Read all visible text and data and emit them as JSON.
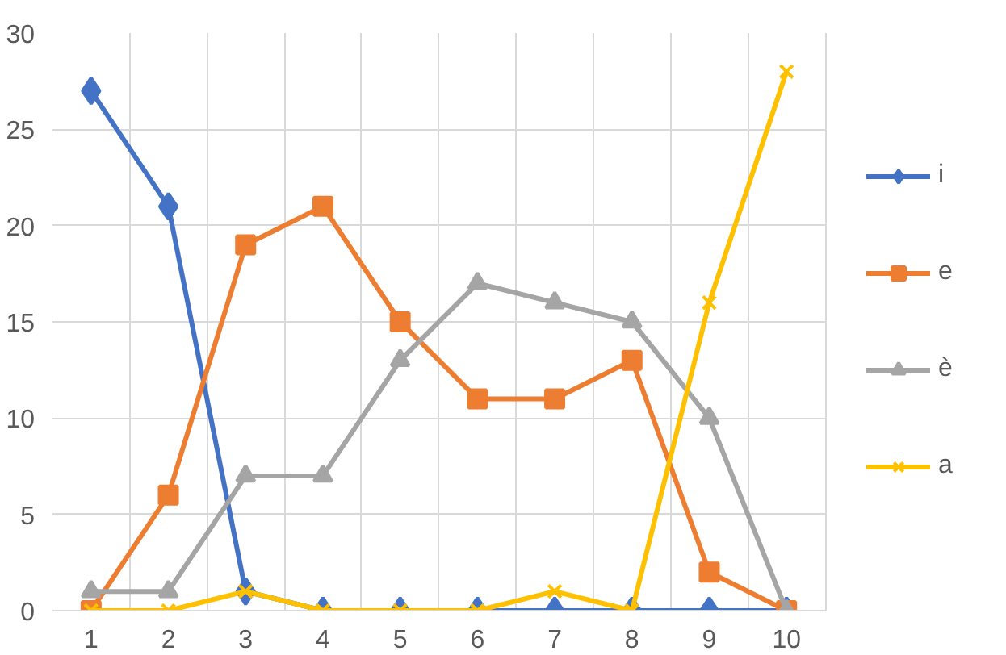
{
  "chart_data": {
    "type": "line",
    "categories": [
      "1",
      "2",
      "3",
      "4",
      "5",
      "6",
      "7",
      "8",
      "9",
      "10"
    ],
    "series": [
      {
        "name": "i",
        "color": "#4472c4",
        "marker": "diamond",
        "values": [
          27,
          21,
          1,
          0,
          0,
          0,
          0,
          0,
          0,
          0
        ]
      },
      {
        "name": "e",
        "color": "#ed7d31",
        "marker": "square",
        "values": [
          0,
          6,
          19,
          21,
          15,
          11,
          11,
          13,
          2,
          0
        ]
      },
      {
        "name": "è",
        "color": "#a5a5a5",
        "marker": "triangle",
        "values": [
          1,
          1,
          7,
          7,
          13,
          17,
          16,
          15,
          10,
          0
        ]
      },
      {
        "name": "a",
        "color": "#ffc000",
        "marker": "cross",
        "values": [
          0,
          0,
          1,
          0,
          0,
          0,
          1,
          0,
          16,
          28
        ]
      }
    ],
    "ylim": [
      0,
      30
    ],
    "yticks": [
      0,
      5,
      10,
      15,
      20,
      25,
      30
    ],
    "grid": true,
    "legend": "right",
    "line_style": "solid"
  }
}
